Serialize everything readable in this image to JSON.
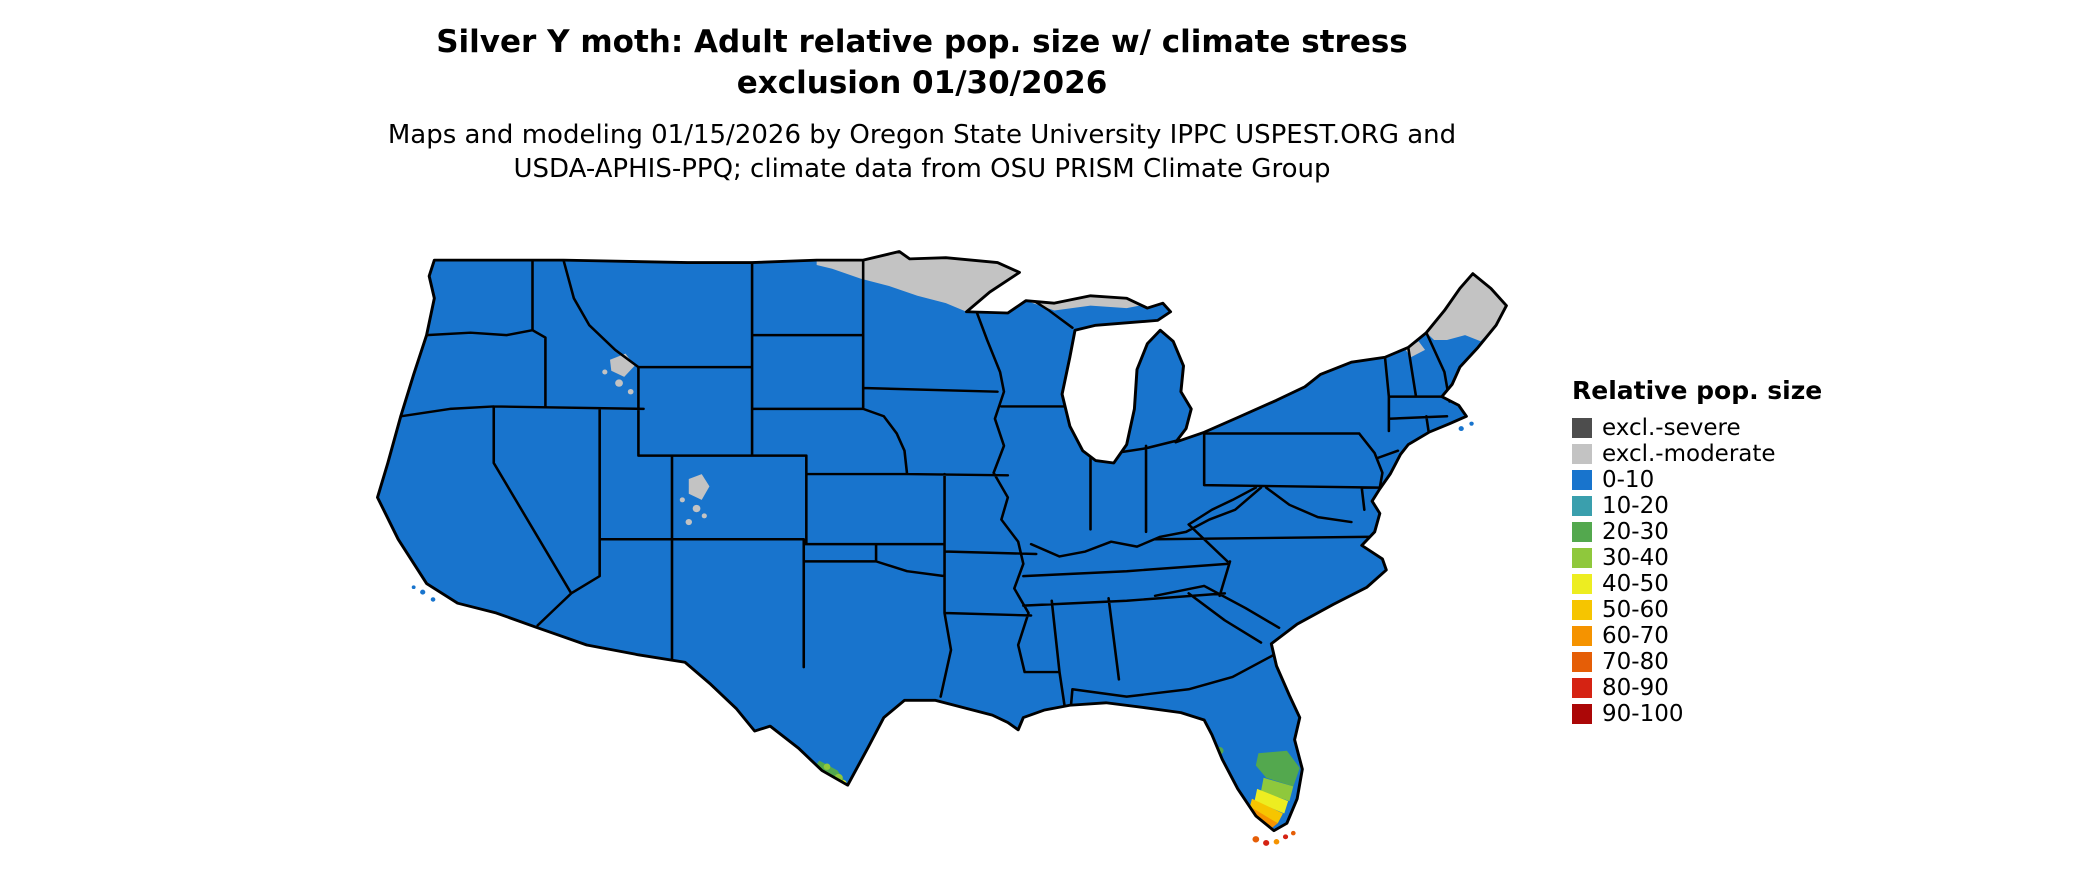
{
  "page": {
    "background": "#FFFFFF"
  },
  "title": {
    "line1": "Silver Y moth: Adult relative pop. size w/ climate stress",
    "line2": "exclusion 01/30/2026"
  },
  "subtitle": {
    "line1": "Maps and modeling 01/15/2026 by Oregon State University IPPC USPEST.ORG and",
    "line2": "USDA-APHIS-PPQ; climate data from OSU PRISM Climate Group"
  },
  "legend": {
    "title": "Relative pop. size",
    "items": [
      {
        "key": "excl-severe",
        "label": "excl.-severe",
        "color": "#4D4D4D"
      },
      {
        "key": "excl-moderate",
        "label": "excl.-moderate",
        "color": "#C3C3C3"
      },
      {
        "key": "0-10",
        "label": "0-10",
        "color": "#1874CD"
      },
      {
        "key": "10-20",
        "label": "10-20",
        "color": "#3A9FAD"
      },
      {
        "key": "20-30",
        "label": "20-30",
        "color": "#53A84E"
      },
      {
        "key": "30-40",
        "label": "30-40",
        "color": "#8FC83C"
      },
      {
        "key": "40-50",
        "label": "40-50",
        "color": "#EDED21"
      },
      {
        "key": "50-60",
        "label": "50-60",
        "color": "#F6C500"
      },
      {
        "key": "60-70",
        "label": "60-70",
        "color": "#F59300"
      },
      {
        "key": "70-80",
        "label": "70-80",
        "color": "#E55E07"
      },
      {
        "key": "80-90",
        "label": "80-90",
        "color": "#D52313"
      },
      {
        "key": "90-100",
        "label": "90-100",
        "color": "#AB0707"
      }
    ]
  },
  "map": {
    "region": "Contiguous United States",
    "dominant_class": "0-10",
    "excluded_moderate_areas": [
      "northern Minnesota",
      "northern Maine",
      "high-elevation Rockies (WY/CO)"
    ],
    "hotspots": [
      {
        "area": "southern Florida and Florida Keys",
        "classes": [
          "20-30",
          "30-40",
          "40-50",
          "50-60",
          "60-70",
          "70-80",
          "80-90"
        ]
      },
      {
        "area": "southern tip of Texas (Rio Grande Valley)",
        "classes": [
          "20-30",
          "30-40",
          "40-50"
        ]
      }
    ]
  }
}
